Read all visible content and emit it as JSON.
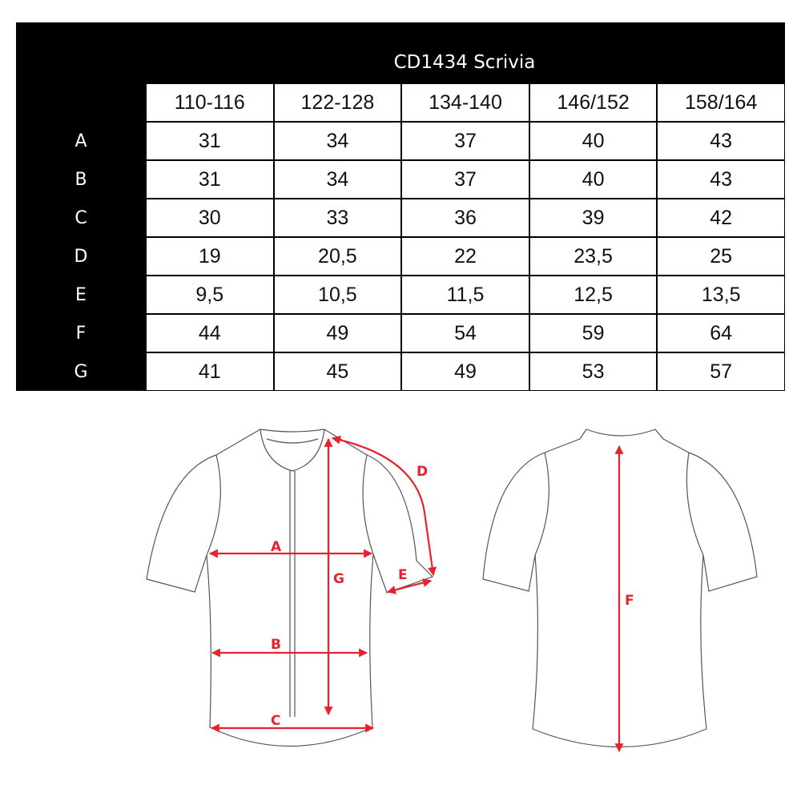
{
  "title": "CD1434 Scrivia",
  "sizes": [
    "110-116",
    "122-128",
    "134-140",
    "146/152",
    "158/164"
  ],
  "rows": [
    {
      "label": "A",
      "values": [
        "31",
        "34",
        "37",
        "40",
        "43"
      ]
    },
    {
      "label": "B",
      "values": [
        "31",
        "34",
        "37",
        "40",
        "43"
      ]
    },
    {
      "label": "C",
      "values": [
        "30",
        "33",
        "36",
        "39",
        "42"
      ]
    },
    {
      "label": "D",
      "values": [
        "19",
        "20,5",
        "22",
        "23,5",
        "25"
      ]
    },
    {
      "label": "E",
      "values": [
        "9,5",
        "10,5",
        "11,5",
        "12,5",
        "13,5"
      ]
    },
    {
      "label": "F",
      "values": [
        "44",
        "49",
        "54",
        "59",
        "64"
      ]
    },
    {
      "label": "G",
      "values": [
        "41",
        "45",
        "49",
        "53",
        "57"
      ]
    }
  ],
  "diagram": {
    "front_labels": {
      "A": "A",
      "B": "B",
      "C": "C",
      "D": "D",
      "E": "E",
      "G": "G"
    },
    "back_labels": {
      "F": "F"
    },
    "outline_color": "#555555",
    "measure_color": "#e8222c"
  }
}
